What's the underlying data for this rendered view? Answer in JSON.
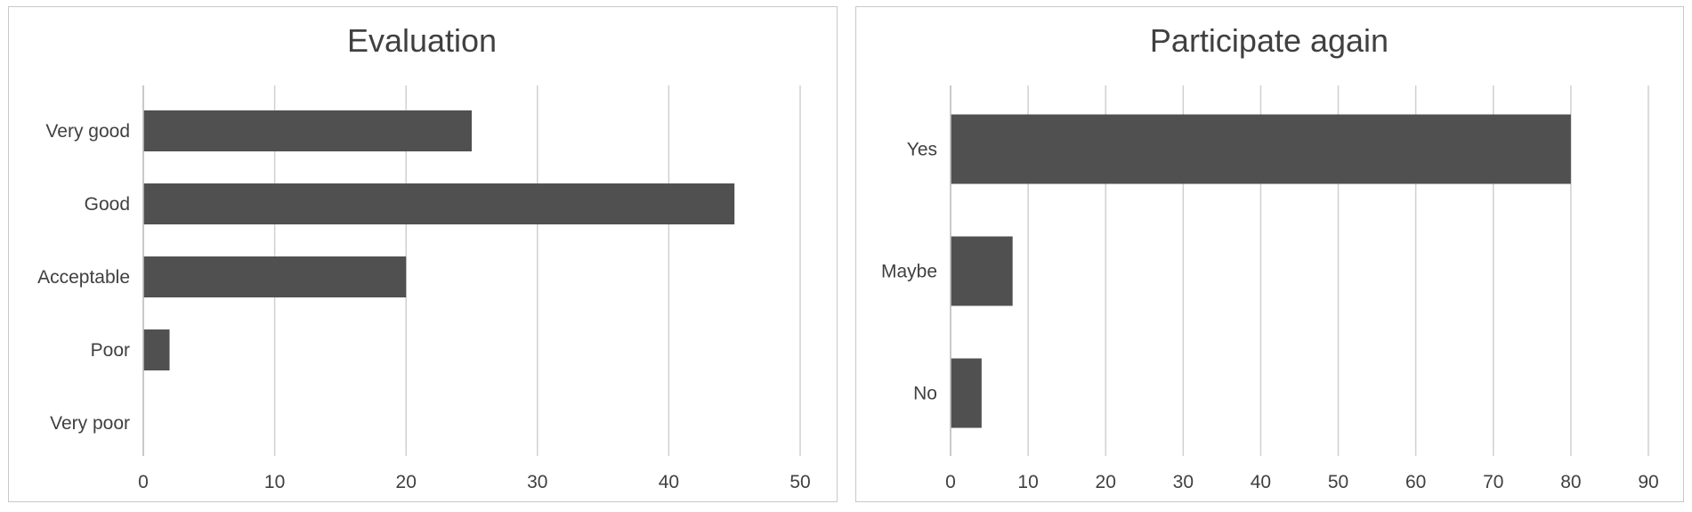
{
  "chart_data": [
    {
      "type": "bar",
      "orientation": "horizontal",
      "title": "Evaluation",
      "categories": [
        "Very good",
        "Good",
        "Acceptable",
        "Poor",
        "Very poor"
      ],
      "values": [
        25,
        45,
        20,
        2,
        0
      ],
      "xlim": [
        0,
        50
      ],
      "xticks": [
        0,
        10,
        20,
        30,
        40,
        50
      ],
      "grid": "vertical",
      "bar_color": "#505050",
      "grid_color": "#d0d0d0"
    },
    {
      "type": "bar",
      "orientation": "horizontal",
      "title": "Participate again",
      "categories": [
        "Yes",
        "Maybe",
        "No"
      ],
      "values": [
        80,
        8,
        4
      ],
      "xlim": [
        0,
        90
      ],
      "xticks": [
        0,
        10,
        20,
        30,
        40,
        50,
        60,
        70,
        80,
        90
      ],
      "grid": "vertical",
      "bar_color": "#505050",
      "grid_color": "#d0d0d0"
    }
  ]
}
